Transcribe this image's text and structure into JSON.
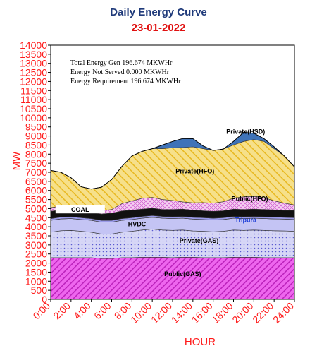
{
  "title": "Daily Energy Curve",
  "subtitle": "23-01-2022",
  "info_lines": [
    "Total Energy Gen 196.674 MKWHr",
    "Energy Not Served  0.000 MKWHr",
    "Energy Requirement      196.674 MKWHr"
  ],
  "chart_data": {
    "type": "area",
    "stacked": true,
    "x": [
      0,
      1,
      2,
      3,
      4,
      5,
      6,
      7,
      8,
      9,
      10,
      11,
      12,
      13,
      14,
      15,
      16,
      17,
      18,
      19,
      20,
      21,
      22,
      23,
      24
    ],
    "xticks": [
      0,
      2,
      4,
      6,
      8,
      10,
      12,
      14,
      16,
      18,
      20,
      22,
      24
    ],
    "xtick_labels": [
      "0:00",
      "2:00",
      "4:00",
      "6:00",
      "8:00",
      "10:00",
      "12:00",
      "14:00",
      "16:00",
      "18:00",
      "20:00",
      "22:00",
      "24:00"
    ],
    "yticks": [
      0,
      500,
      1000,
      1500,
      2000,
      2500,
      3000,
      3500,
      4000,
      4500,
      5000,
      5500,
      6000,
      6500,
      7000,
      7500,
      8000,
      8500,
      9000,
      9500,
      10000,
      10500,
      11000,
      11500,
      12000,
      12500,
      13000,
      13500,
      14000
    ],
    "ylim": [
      0,
      14000
    ],
    "xlim": [
      0,
      24
    ],
    "xlabel": "HOUR",
    "ylabel": "MW",
    "series": [
      {
        "name": "Public(GAS)",
        "fill": "#ee44ee",
        "pattern": "diag-magenta",
        "values": [
          2300,
          2300,
          2300,
          2300,
          2300,
          2250,
          2250,
          2300,
          2300,
          2320,
          2320,
          2320,
          2300,
          2320,
          2320,
          2300,
          2300,
          2300,
          2320,
          2320,
          2320,
          2300,
          2300,
          2300,
          2300
        ]
      },
      {
        "name": "Private(GAS)",
        "fill": "#ccccf2",
        "pattern": "dots-blue",
        "values": [
          1400,
          1480,
          1500,
          1450,
          1400,
          1350,
          1350,
          1400,
          1450,
          1500,
          1550,
          1500,
          1500,
          1500,
          1450,
          1450,
          1420,
          1450,
          1500,
          1480,
          1500,
          1500,
          1480,
          1470,
          1450
        ]
      },
      {
        "name": "HVDC",
        "fill": "#c4c4f4",
        "pattern": "solid",
        "values": [
          650,
          650,
          650,
          650,
          650,
          650,
          650,
          650,
          650,
          650,
          650,
          650,
          650,
          650,
          650,
          650,
          650,
          650,
          650,
          650,
          650,
          650,
          650,
          650,
          650
        ]
      },
      {
        "name": "Tripura",
        "fill": "#9a9ae8",
        "pattern": "solid",
        "values": [
          100,
          100,
          100,
          100,
          100,
          100,
          100,
          100,
          100,
          100,
          100,
          100,
          100,
          100,
          100,
          100,
          100,
          100,
          100,
          100,
          100,
          100,
          100,
          100,
          100
        ]
      },
      {
        "name": "COAL",
        "fill": "#111111",
        "pattern": "solid",
        "values": [
          400,
          400,
          400,
          380,
          350,
          350,
          400,
          420,
          420,
          400,
          400,
          380,
          400,
          400,
          400,
          380,
          380,
          380,
          400,
          400,
          400,
          400,
          400,
          380,
          400
        ]
      },
      {
        "name": "Public(HFO)",
        "fill": "#f0b8ea",
        "pattern": "cross",
        "values": [
          200,
          200,
          200,
          200,
          180,
          180,
          200,
          400,
          500,
          600,
          600,
          550,
          500,
          400,
          400,
          450,
          450,
          500,
          600,
          700,
          700,
          650,
          500,
          400,
          300
        ]
      },
      {
        "name": "Private(HFO)",
        "fill": "#f2d24a",
        "pattern": "diag-yellow",
        "values": [
          2050,
          1870,
          1550,
          1120,
          1100,
          1300,
          1650,
          2050,
          2480,
          2580,
          2680,
          2800,
          2900,
          2990,
          3080,
          2970,
          2900,
          2900,
          2930,
          3050,
          3130,
          3100,
          2870,
          2600,
          2100
        ]
      },
      {
        "name": "Private(HSD)",
        "fill": "#3f73b8",
        "pattern": "solid",
        "values": [
          0,
          0,
          0,
          0,
          0,
          0,
          0,
          0,
          0,
          0,
          0,
          200,
          350,
          500,
          450,
          150,
          0,
          0,
          200,
          500,
          350,
          150,
          100,
          0,
          0
        ]
      }
    ],
    "label_colors": {
      "Public(GAS)": "#000000",
      "Private(GAS)": "#000000",
      "HVDC": "#000000",
      "Tripura": "#1f3fd8",
      "COAL": "#000000",
      "Public(HFO)": "#000000",
      "Private(HFO)": "#000000",
      "Private(HSD)": "#000000"
    },
    "label_positions": {
      "Public(GAS)": [
        13,
        1400
      ],
      "Private(GAS)": [
        14.6,
        3230
      ],
      "HVDC": [
        8.5,
        4150
      ],
      "Tripura": [
        19.2,
        4380
      ],
      "COAL": [
        2.9,
        4930
      ],
      "Public(HFO)": [
        19.6,
        5550
      ],
      "Private(HFO)": [
        14.2,
        7050
      ],
      "Private(HSD)": [
        19.2,
        9230
      ]
    }
  }
}
